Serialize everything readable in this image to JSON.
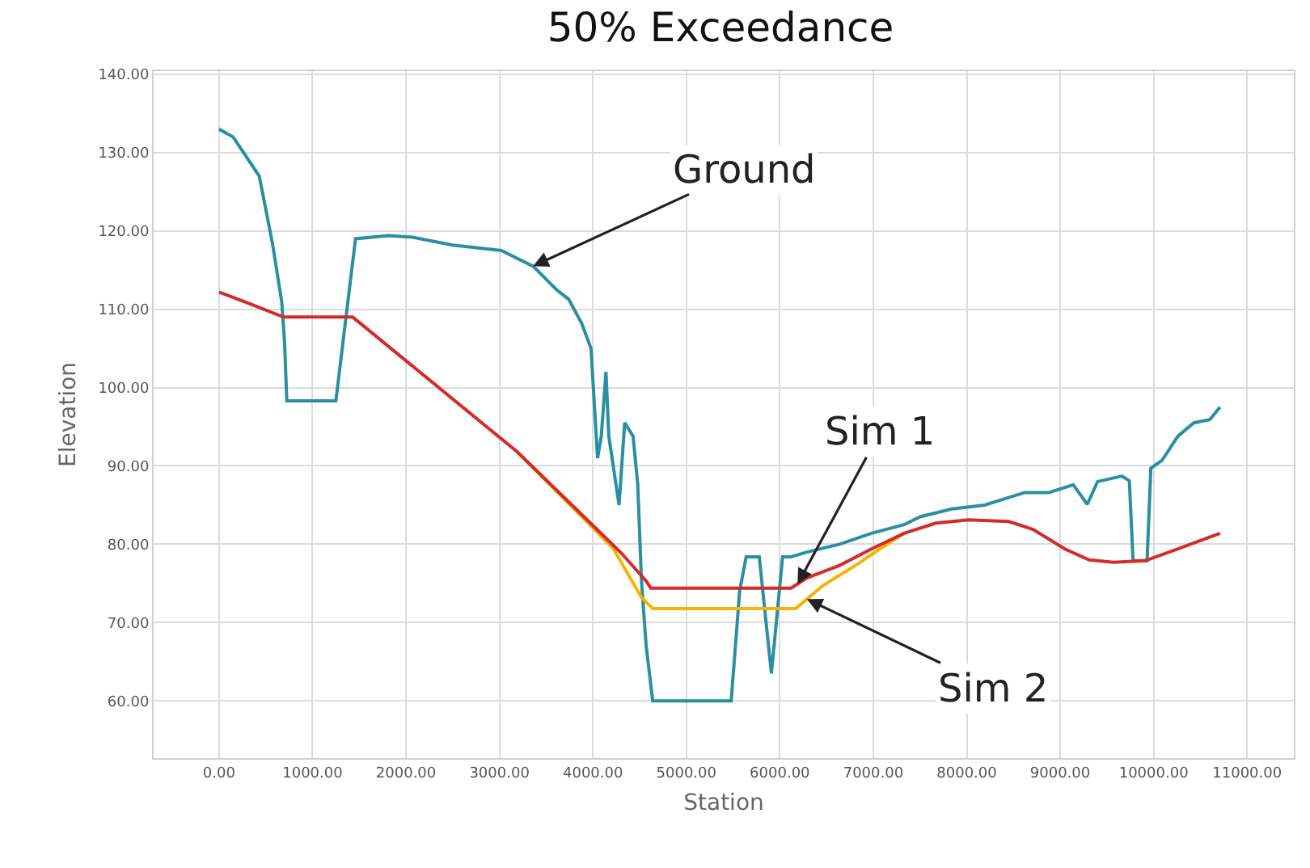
{
  "chart_data": {
    "type": "line",
    "title": "50% Exceedance",
    "xlabel": "Station",
    "ylabel": "Elevation",
    "xlim": [
      -700,
      11500
    ],
    "ylim": [
      52.7,
      140.4
    ],
    "xticks": [
      {
        "value": 0,
        "label": "0.00"
      },
      {
        "value": 1000,
        "label": "1000.00"
      },
      {
        "value": 2000,
        "label": "2000.00"
      },
      {
        "value": 3000,
        "label": "3000.00"
      },
      {
        "value": 4000,
        "label": "4000.00"
      },
      {
        "value": 5000,
        "label": "5000.00"
      },
      {
        "value": 6000,
        "label": "6000.00"
      },
      {
        "value": 7000,
        "label": "7000.00"
      },
      {
        "value": 8000,
        "label": "8000.00"
      },
      {
        "value": 9000,
        "label": "9000.00"
      },
      {
        "value": 10000,
        "label": "10000.00"
      },
      {
        "value": 11000,
        "label": "11000.00"
      }
    ],
    "yticks": [
      {
        "value": 60,
        "label": "60.00"
      },
      {
        "value": 70,
        "label": "70.00"
      },
      {
        "value": 80,
        "label": "80.00"
      },
      {
        "value": 90,
        "label": "90.00"
      },
      {
        "value": 100,
        "label": "100.00"
      },
      {
        "value": 110,
        "label": "110.00"
      },
      {
        "value": 120,
        "label": "120.00"
      },
      {
        "value": 130,
        "label": "130.00"
      },
      {
        "value": 140,
        "label": "140.00"
      }
    ],
    "grid": true,
    "marker": "none",
    "line_style": "solid",
    "series": [
      {
        "color": "#2a8fa0",
        "x": [
          0,
          150,
          430,
          570,
          670,
          700,
          725,
          1250,
          1460,
          1810,
          2070,
          2500,
          3020,
          3360,
          3620,
          3740,
          3880,
          3980,
          4050,
          4090,
          4140,
          4170,
          4280,
          4340,
          4430,
          4480,
          4520,
          4570,
          4640,
          5480,
          5570,
          5640,
          5780,
          5910,
          6030,
          6120,
          6290,
          6640,
          6980,
          7330,
          7500,
          7840,
          8190,
          8620,
          8880,
          9140,
          9290,
          9400,
          9660,
          9740,
          9780,
          9930,
          9970,
          10090,
          10260,
          10430,
          10600,
          10710
        ],
        "values": [
          133,
          132,
          127,
          118.5,
          111,
          106,
          98.3,
          98.3,
          119,
          119.4,
          119.2,
          118.2,
          117.5,
          115.5,
          112.4,
          111.3,
          108.2,
          105,
          91,
          93.8,
          102,
          93.8,
          85,
          95.5,
          93.8,
          87.6,
          75.3,
          67,
          60,
          60,
          74,
          78.4,
          78.4,
          63.5,
          78.4,
          78.4,
          79,
          80,
          81.4,
          82.5,
          83.5,
          84.5,
          85,
          86.6,
          86.6,
          87.6,
          85.1,
          88,
          88.7,
          88.1,
          77.9,
          77.9,
          89.7,
          90.7,
          93.8,
          95.5,
          95.9,
          97.5
        ]
      },
      {
        "color": "#f5b400",
        "x": [
          3190,
          3800,
          4220,
          4520,
          4640,
          6170,
          6470,
          6810,
          7070,
          7330
        ],
        "values": [
          91.8,
          84.5,
          79.4,
          73.2,
          71.8,
          71.8,
          74.8,
          77.3,
          79.4,
          81.4
        ]
      },
      {
        "color": "#d42a2a",
        "x": [
          0,
          330,
          690,
          1430,
          3190,
          4310,
          4570,
          4620,
          6120,
          6290,
          6640,
          6980,
          7330,
          7670,
          8020,
          8450,
          8710,
          9050,
          9310,
          9570,
          9910,
          10260,
          10710
        ],
        "values": [
          112.2,
          110.7,
          109,
          109,
          91.8,
          78.8,
          75.3,
          74.4,
          74.4,
          75.7,
          77.3,
          79.4,
          81.4,
          82.7,
          83.1,
          82.9,
          81.9,
          79.4,
          78,
          77.7,
          77.9,
          79.4,
          81.4
        ]
      }
    ],
    "annotations": [
      {
        "text": "Ground",
        "x": 3360,
        "y": 115.5
      },
      {
        "text": "Sim 1",
        "x": 6190,
        "y": 74.9
      },
      {
        "text": "Sim 2",
        "x": 6290,
        "y": 73
      }
    ]
  }
}
